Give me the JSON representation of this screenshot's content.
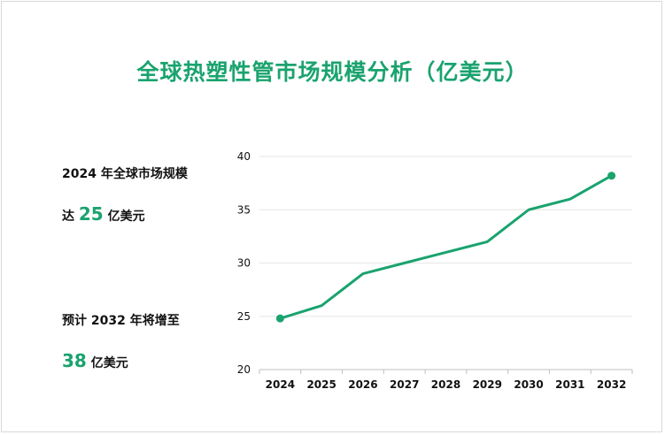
{
  "title": "全球热塑性管市场规模分析（亿美元）",
  "summary": {
    "line1": "2024 年全球市场规模",
    "line2_prefix": "达",
    "line2_value": "25",
    "line2_suffix": "亿美元",
    "line3": "预计 2032 年将增至",
    "line4_value": "38",
    "line4_suffix": "亿美元"
  },
  "colors": {
    "accent": "#1aa36f",
    "grid": "#e6e6e6",
    "text": "#111111"
  },
  "chart_data": {
    "type": "line",
    "title": "全球热塑性管市场规模分析（亿美元）",
    "xlabel": "",
    "ylabel": "",
    "categories": [
      "2024",
      "2025",
      "2026",
      "2027",
      "2028",
      "2029",
      "2030",
      "2031",
      "2032"
    ],
    "series": [
      {
        "values": [
          24.8,
          26.0,
          29.0,
          30.0,
          31.0,
          32.0,
          35.0,
          36.0,
          38.2
        ]
      }
    ],
    "yticks": [
      20,
      25,
      30,
      35,
      40
    ],
    "ylim": [
      20,
      40
    ],
    "grid": true,
    "legend": "none",
    "endpoint_markers": true
  }
}
